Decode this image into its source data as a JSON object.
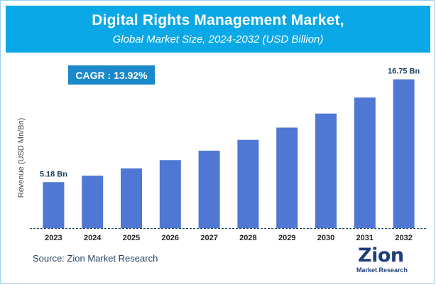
{
  "header": {
    "title": "Digital Rights Management Market,",
    "subtitle": "Global Market Size, 2024-2032 (USD Billion)"
  },
  "cagr": {
    "label": "CAGR :",
    "value": "13.92%"
  },
  "source": "Source: Zion Market Research",
  "logo": {
    "word": "Zion",
    "sub_left": "Market",
    "sub_dot": ".",
    "sub_right": "Research"
  },
  "colors": {
    "bar": "#4f78d4",
    "header": "#0aa8e6",
    "cagr_box": "#1a88c9",
    "axis": "#1d3f5e"
  },
  "chart_data": {
    "type": "bar",
    "categories": [
      "2023",
      "2024",
      "2025",
      "2026",
      "2027",
      "2028",
      "2029",
      "2030",
      "2031",
      "2032"
    ],
    "values": [
      5.18,
      5.9,
      6.72,
      7.66,
      8.72,
      9.94,
      11.32,
      12.9,
      14.7,
      16.75
    ],
    "data_labels": [
      {
        "index": 0,
        "text": "5.18 Bn"
      },
      {
        "index": 9,
        "text": "16.75 Bn"
      }
    ],
    "ylabel": "Revenue (USD Mn/Bn)",
    "xlabel": "",
    "ylim": [
      0,
      18
    ],
    "grid": false,
    "legend": "none"
  }
}
